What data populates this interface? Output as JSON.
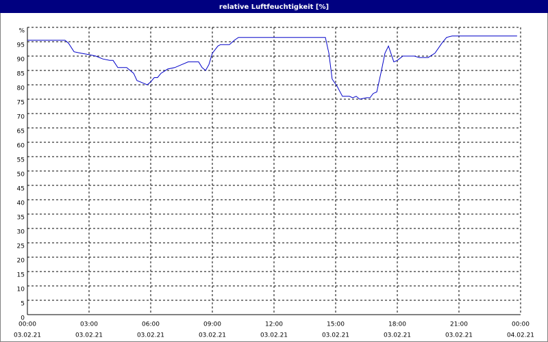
{
  "chart_data": {
    "type": "line",
    "title": "relative Luftfeuchtigkeit [%]",
    "x": [
      0,
      1.83,
      2.0,
      2.27,
      2.6,
      3.0,
      3.33,
      3.67,
      4.0,
      4.17,
      4.4,
      4.83,
      5.17,
      5.33,
      5.67,
      5.83,
      6.0,
      6.17,
      6.33,
      6.5,
      6.83,
      7.17,
      7.5,
      7.83,
      8.33,
      8.5,
      8.67,
      8.83,
      9.0,
      9.27,
      9.4,
      9.83,
      10.07,
      10.27,
      14.5,
      14.67,
      14.83,
      15.07,
      15.33,
      15.67,
      15.83,
      16.0,
      16.17,
      16.5,
      16.67,
      16.83,
      17.0,
      17.23,
      17.4,
      17.57,
      17.83,
      18.0,
      18.27,
      18.83,
      19.07,
      19.5,
      19.83,
      20.17,
      20.4,
      20.67,
      23.83
    ],
    "series": [
      {
        "name": "relative Luftfeuchtigkeit",
        "color": "#0000c8",
        "values": [
          95.5,
          95.5,
          94.5,
          91.5,
          91,
          90.5,
          90,
          89,
          88.5,
          88.5,
          86,
          86,
          84,
          81.5,
          80.5,
          80,
          81,
          82.5,
          82.5,
          84,
          85.5,
          86,
          87,
          88,
          88,
          86,
          85,
          87,
          91,
          93.5,
          94,
          94,
          95.5,
          96.5,
          96.5,
          91,
          82,
          79.5,
          76,
          76,
          75.5,
          76,
          75,
          75.5,
          75.5,
          77,
          77.5,
          85,
          91,
          93.5,
          88,
          88.5,
          90,
          90,
          89.5,
          89.5,
          91,
          94.5,
          96.5,
          97,
          97
        ]
      }
    ],
    "xlim": [
      0,
      24
    ],
    "ylim": [
      0,
      100
    ],
    "yticks": [
      0,
      5,
      10,
      15,
      20,
      25,
      30,
      35,
      40,
      45,
      50,
      55,
      60,
      65,
      70,
      75,
      80,
      85,
      90,
      95,
      {
        "value": 100,
        "label": "%"
      }
    ],
    "xticks": [
      {
        "value": 0,
        "label": "00:00",
        "date": "03.02.21"
      },
      {
        "value": 3,
        "label": "03:00",
        "date": "03.02.21"
      },
      {
        "value": 6,
        "label": "06:00",
        "date": "03.02.21"
      },
      {
        "value": 9,
        "label": "09:00",
        "date": "03.02.21"
      },
      {
        "value": 12,
        "label": "12:00",
        "date": "03.02.21"
      },
      {
        "value": 15,
        "label": "15:00",
        "date": "03.02.21"
      },
      {
        "value": 18,
        "label": "18:00",
        "date": "03.02.21"
      },
      {
        "value": 21,
        "label": "21:00",
        "date": "03.02.21"
      },
      {
        "value": 24,
        "label": "00:00",
        "date": "04.02.21"
      }
    ],
    "grid": true
  }
}
